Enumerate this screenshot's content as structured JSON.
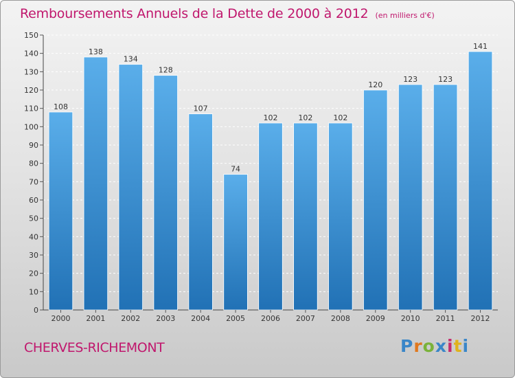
{
  "header": {
    "title": "Remboursements Annuels de la Dette de 2000 à 2012",
    "subtitle": "(en milliers d'€)"
  },
  "footer": {
    "commune": "CHERVES-RICHEMONT",
    "logo_text": "Proxiti"
  },
  "colors": {
    "title": "#c0176d",
    "bar_top": "#5aaeea",
    "bar_bottom": "#2171b5"
  },
  "chart_data": {
    "type": "bar",
    "title": "Remboursements Annuels de la Dette de 2000 à 2012",
    "subtitle": "(en milliers d'€)",
    "xlabel": "",
    "ylabel": "",
    "categories": [
      "2000",
      "2001",
      "2002",
      "2003",
      "2004",
      "2005",
      "2006",
      "2007",
      "2008",
      "2009",
      "2010",
      "2011",
      "2012"
    ],
    "values": [
      108,
      138,
      134,
      128,
      107,
      74,
      102,
      102,
      102,
      120,
      123,
      123,
      141
    ],
    "ylim": [
      0,
      150
    ],
    "yticks": [
      0,
      10,
      20,
      30,
      40,
      50,
      60,
      70,
      80,
      90,
      100,
      110,
      120,
      130,
      140,
      150
    ],
    "grid": true,
    "data_labels": true
  }
}
